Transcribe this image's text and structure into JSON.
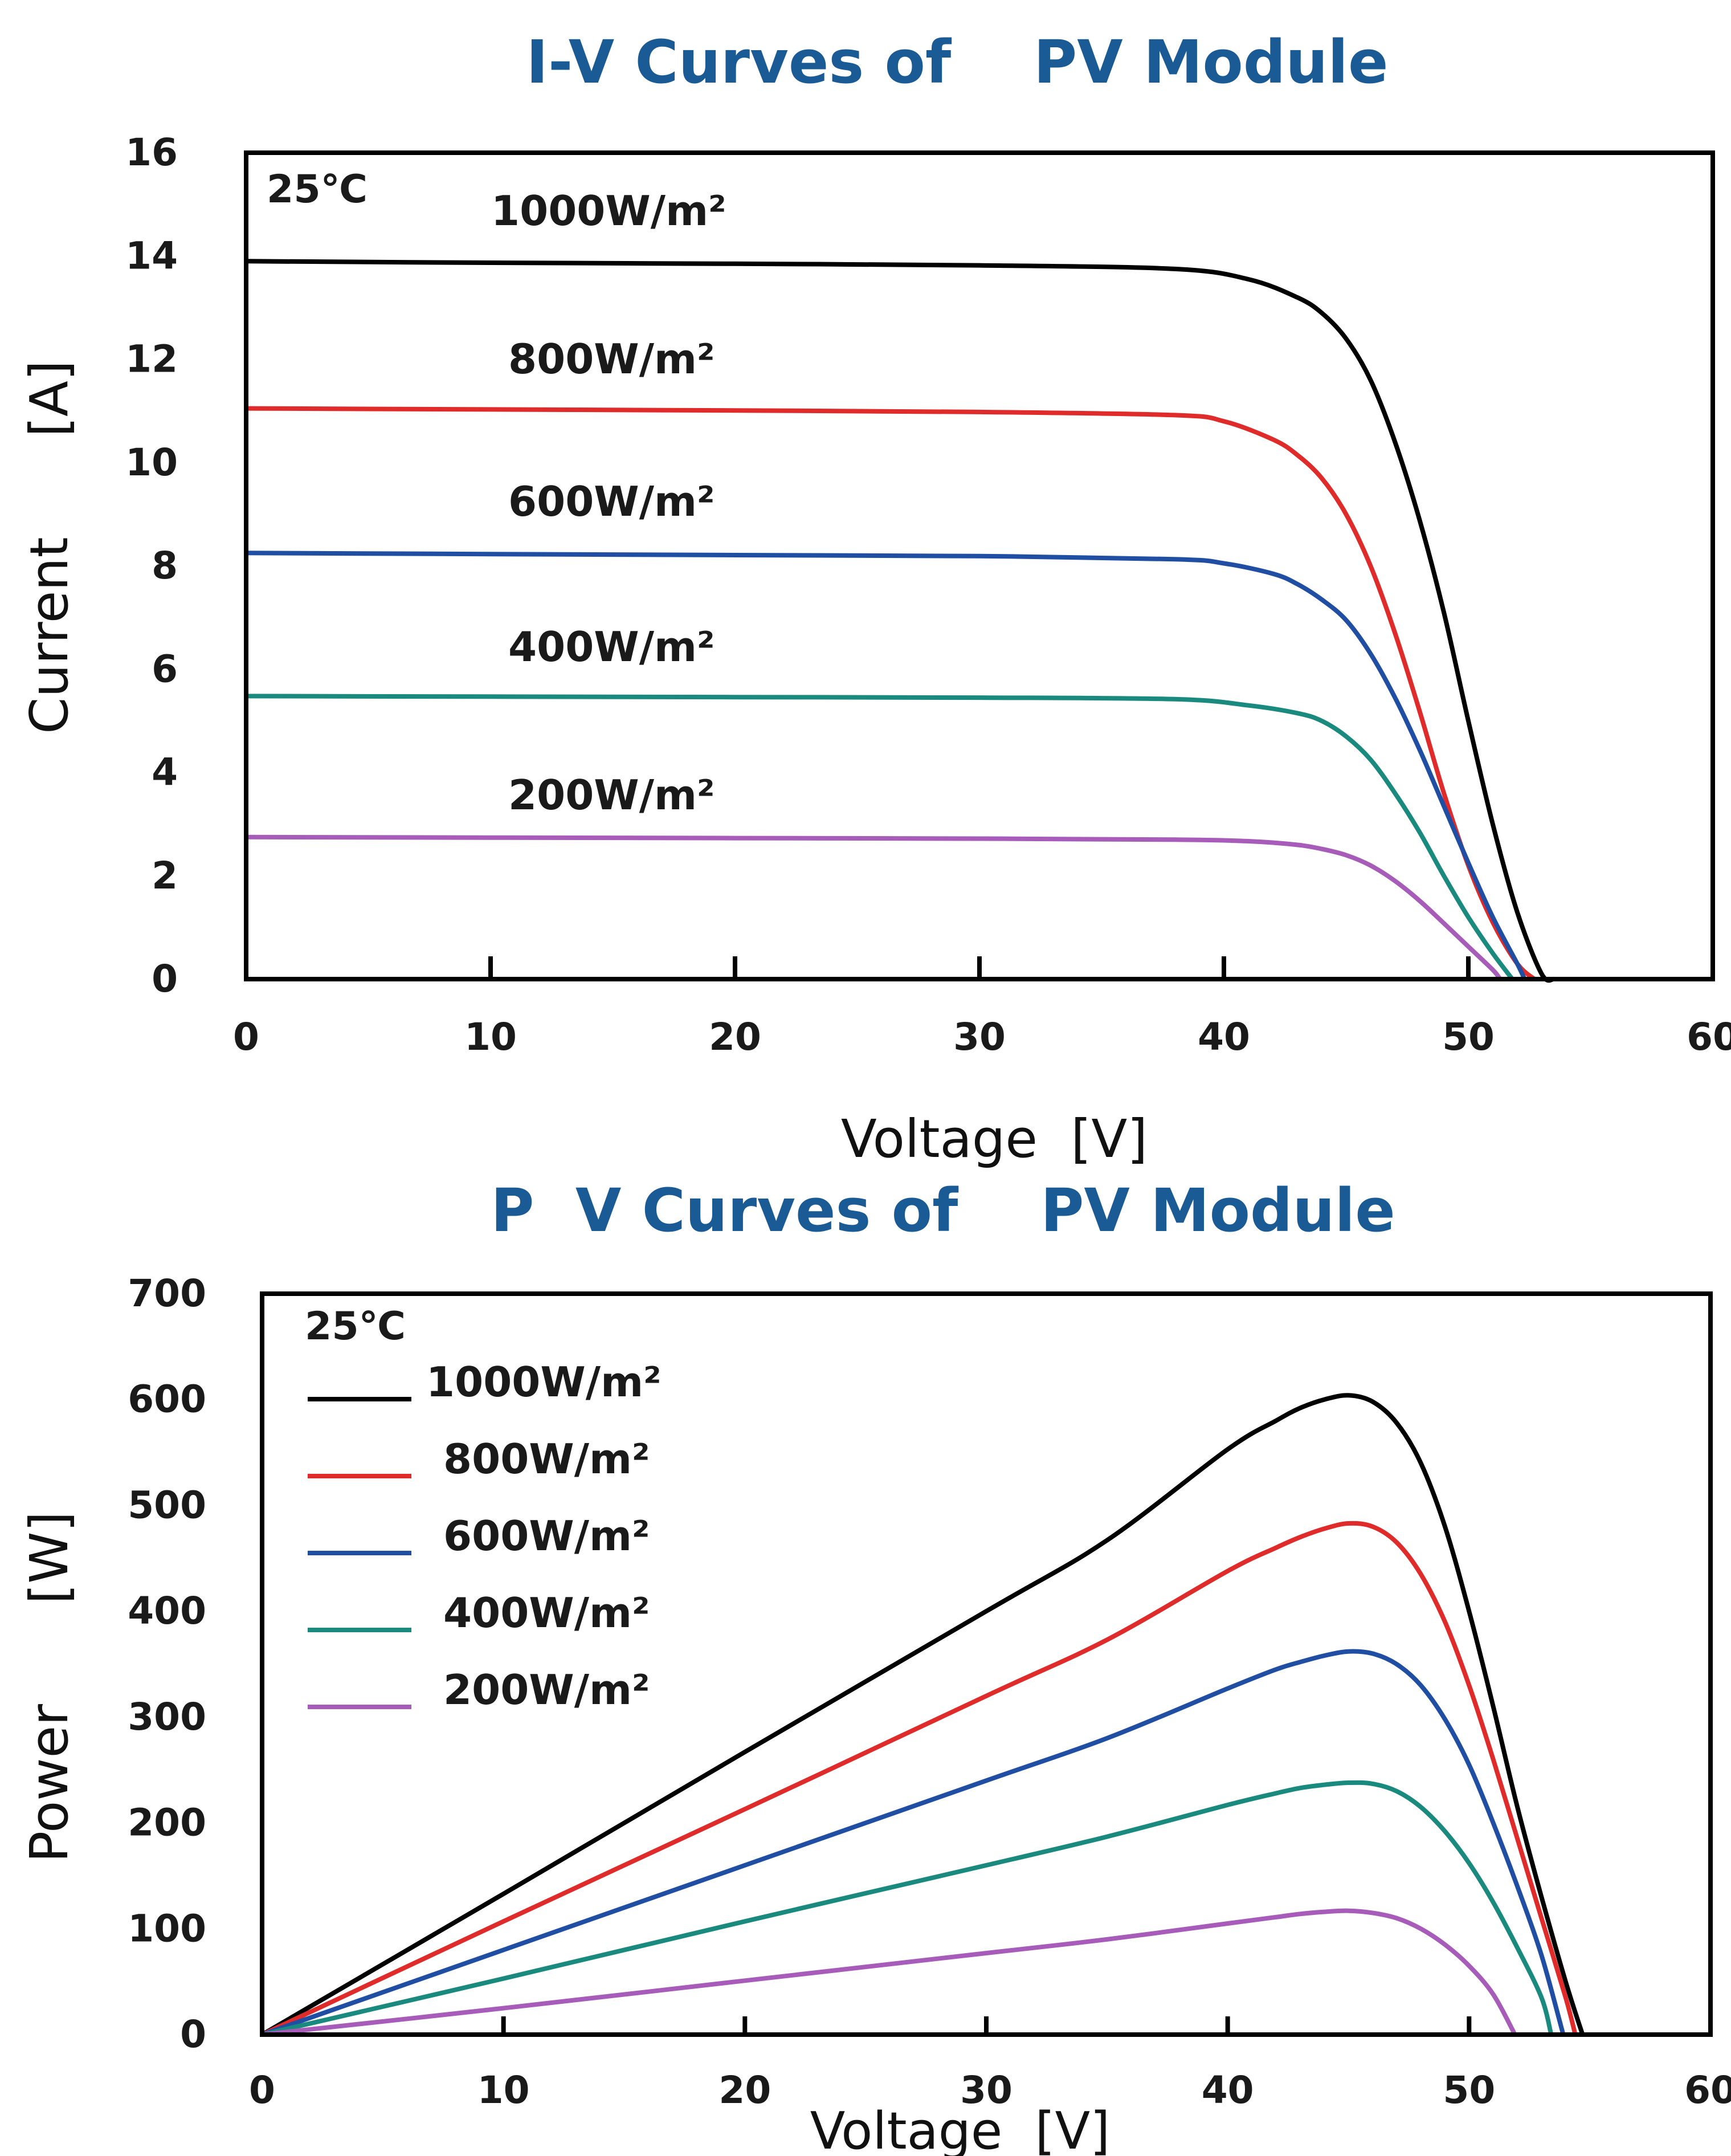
{
  "chart_data": [
    {
      "type": "line",
      "title": "I-V Curves of    PV Module",
      "xlabel": "Voltage  [V]",
      "ylabel": "Current      [A]",
      "xlim": [
        0,
        60
      ],
      "ylim": [
        0,
        16
      ],
      "xticks": [
        0,
        10,
        20,
        30,
        40,
        50,
        60
      ],
      "yticks": [
        0,
        2,
        4,
        6,
        8,
        10,
        12,
        14,
        16
      ],
      "annotation": "25℃",
      "grid": false,
      "legend": "inline labels above curves",
      "series": [
        {
          "name": "1000W/m²",
          "color": "#000000",
          "x": [
            0,
            10,
            20,
            30,
            38,
            41,
            43,
            44,
            45,
            46,
            47,
            48,
            49,
            50,
            51,
            52,
            53,
            53.5
          ],
          "y": [
            13.9,
            13.87,
            13.85,
            13.82,
            13.75,
            13.55,
            13.2,
            12.9,
            12.4,
            11.6,
            10.4,
            8.9,
            7.1,
            5.0,
            3.0,
            1.3,
            0.1,
            0
          ]
        },
        {
          "name": "800W/m²",
          "color": "#e02b2b",
          "x": [
            0,
            10,
            20,
            30,
            38,
            40,
            42,
            43,
            44,
            45,
            46,
            47,
            48,
            49,
            50,
            51,
            52,
            52.7
          ],
          "y": [
            11.05,
            11.03,
            11.01,
            10.98,
            10.92,
            10.8,
            10.45,
            10.15,
            9.7,
            9.0,
            8.0,
            6.7,
            5.2,
            3.6,
            2.2,
            1.1,
            0.3,
            0
          ]
        },
        {
          "name": "600W/m²",
          "color": "#1f4ea3",
          "x": [
            0,
            10,
            20,
            30,
            38,
            40,
            42,
            43,
            44,
            45,
            46,
            47,
            48,
            49,
            50,
            51,
            52,
            52.3
          ],
          "y": [
            8.25,
            8.23,
            8.21,
            8.19,
            8.13,
            8.05,
            7.85,
            7.65,
            7.35,
            6.95,
            6.3,
            5.45,
            4.45,
            3.35,
            2.25,
            1.2,
            0.3,
            0
          ]
        },
        {
          "name": "400W/m²",
          "color": "#1a8a7e",
          "x": [
            0,
            10,
            20,
            30,
            38,
            41,
            43,
            44,
            45,
            46,
            47,
            48,
            49,
            50,
            51,
            51.8
          ],
          "y": [
            5.48,
            5.47,
            5.46,
            5.45,
            5.42,
            5.3,
            5.15,
            5.0,
            4.7,
            4.25,
            3.6,
            2.85,
            2.0,
            1.2,
            0.5,
            0
          ]
        },
        {
          "name": "200W/m²",
          "color": "#a85cb9",
          "x": [
            0,
            10,
            20,
            30,
            38,
            41,
            43,
            44,
            45,
            46,
            47,
            48,
            49,
            50,
            51,
            51.3
          ],
          "y": [
            2.75,
            2.74,
            2.73,
            2.72,
            2.7,
            2.67,
            2.6,
            2.52,
            2.4,
            2.2,
            1.9,
            1.52,
            1.08,
            0.63,
            0.18,
            0
          ]
        }
      ]
    },
    {
      "type": "line",
      "title": "P  V Curves of    PV Module",
      "xlabel": "Voltage  [V]",
      "ylabel": "Power      [W]",
      "xlim": [
        0,
        60
      ],
      "ylim": [
        0,
        700
      ],
      "xticks": [
        0,
        10,
        20,
        30,
        40,
        50,
        60
      ],
      "yticks": [
        0,
        100,
        200,
        300,
        400,
        500,
        600,
        700
      ],
      "annotation": "25℃",
      "grid": false,
      "legend": "top-left",
      "series": [
        {
          "name": "1000W/m²",
          "color": "#000000",
          "x": [
            0,
            10,
            20,
            30,
            35,
            40,
            42,
            43,
            44,
            45,
            46,
            47,
            48,
            49,
            50,
            51,
            52,
            53,
            54,
            54.7
          ],
          "y": [
            0,
            133,
            267,
            400,
            467,
            553,
            580,
            592,
            600,
            604,
            598,
            578,
            540,
            480,
            400,
            310,
            215,
            130,
            50,
            0
          ]
        },
        {
          "name": "800W/m²",
          "color": "#e02b2b",
          "x": [
            0,
            10,
            20,
            30,
            35,
            40,
            42,
            43,
            44,
            45,
            46,
            47,
            48,
            49,
            50,
            51,
            52,
            53,
            54,
            54.4
          ],
          "y": [
            0,
            107,
            213,
            320,
            373,
            438,
            460,
            470,
            478,
            483,
            480,
            465,
            435,
            390,
            330,
            260,
            185,
            110,
            35,
            0
          ]
        },
        {
          "name": "600W/m²",
          "color": "#1f4ea3",
          "x": [
            0,
            10,
            20,
            30,
            35,
            40,
            42,
            43,
            44,
            45,
            46,
            47,
            48,
            49,
            50,
            51,
            52,
            53,
            53.9
          ],
          "y": [
            0,
            80,
            160,
            240,
            280,
            327,
            345,
            352,
            358,
            362,
            360,
            350,
            330,
            298,
            255,
            200,
            140,
            75,
            0
          ]
        },
        {
          "name": "400W/m²",
          "color": "#1a8a7e",
          "x": [
            0,
            10,
            20,
            30,
            35,
            40,
            42,
            43,
            44,
            45,
            46,
            47,
            48,
            49,
            50,
            51,
            52,
            53,
            53.4
          ],
          "y": [
            0,
            53,
            107,
            160,
            187,
            217,
            228,
            233,
            236,
            238,
            237,
            230,
            215,
            192,
            162,
            125,
            82,
            35,
            0
          ]
        },
        {
          "name": "200W/m²",
          "color": "#a85cb9",
          "x": [
            0,
            10,
            20,
            30,
            35,
            40,
            42,
            43,
            44,
            45,
            46,
            47,
            48,
            49,
            50,
            51,
            51.9
          ],
          "y": [
            0,
            25,
            51,
            77,
            90,
            105,
            111,
            114,
            116,
            117,
            115,
            110,
            100,
            85,
            65,
            38,
            0
          ]
        }
      ]
    }
  ]
}
